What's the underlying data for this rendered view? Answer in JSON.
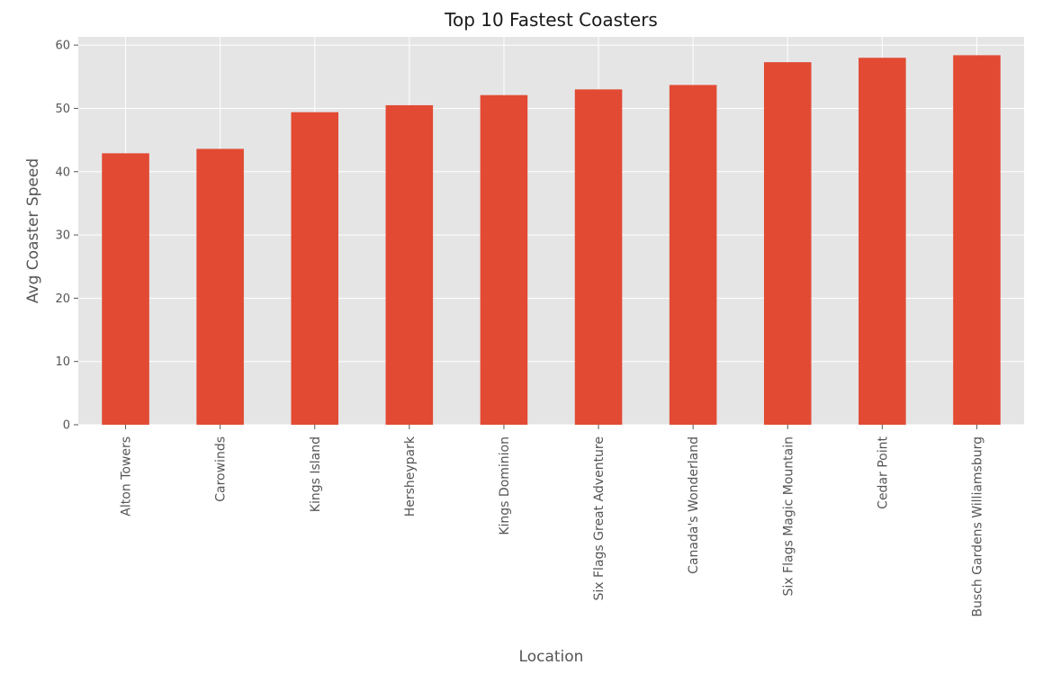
{
  "chart_data": {
    "type": "bar",
    "title": "Top 10 Fastest Coasters",
    "xlabel": "Location",
    "ylabel": "Avg Coaster Speed",
    "categories": [
      "Alton Towers",
      "Carowinds",
      "Kings Island",
      "Hersheypark",
      "Kings Dominion",
      "Six Flags Great Adventure",
      "Canada's Wonderland",
      "Six Flags Magic Mountain",
      "Cedar Point",
      "Busch Gardens Williamsburg"
    ],
    "values": [
      42.9,
      43.6,
      49.4,
      50.5,
      52.1,
      53.0,
      53.7,
      57.3,
      58.0,
      58.4
    ],
    "ylim": [
      0,
      61.3
    ],
    "yticks": [
      0,
      10,
      20,
      30,
      40,
      50,
      60
    ],
    "grid": true,
    "colors": {
      "bar": "#e24a33",
      "plot_background": "#e5e5e5",
      "grid": "#ffffff"
    }
  }
}
